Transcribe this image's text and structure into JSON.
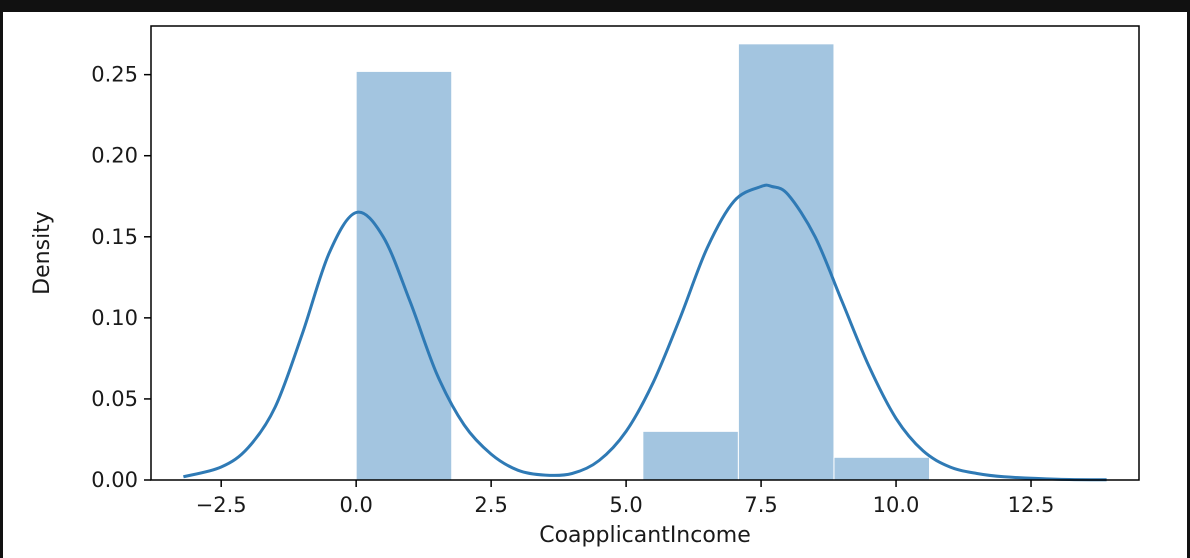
{
  "chart_data": {
    "type": "bar",
    "subtype": "histogram-with-kde",
    "xlabel": "CoapplicantIncome",
    "ylabel": "Density",
    "xlim": [
      -3.8,
      14.5
    ],
    "ylim": [
      0,
      0.28
    ],
    "x_ticks": [
      -2.5,
      0.0,
      2.5,
      5.0,
      7.5,
      10.0,
      12.5
    ],
    "x_tick_labels": [
      "−2.5",
      "0.0",
      "2.5",
      "5.0",
      "7.5",
      "10.0",
      "12.5"
    ],
    "y_ticks": [
      0.0,
      0.05,
      0.1,
      0.15,
      0.2,
      0.25
    ],
    "y_tick_labels": [
      "0.00",
      "0.05",
      "0.10",
      "0.15",
      "0.20",
      "0.25"
    ],
    "grid": false,
    "bar_color": "#a3c5e0",
    "line_color": "#2f7ab5",
    "bins": [
      {
        "x0": 0.0,
        "x1": 1.77,
        "density": 0.252
      },
      {
        "x0": 1.77,
        "x1": 3.54,
        "density": 0.0
      },
      {
        "x0": 3.54,
        "x1": 5.31,
        "density": 0.0
      },
      {
        "x0": 5.31,
        "x1": 7.08,
        "density": 0.03
      },
      {
        "x0": 7.08,
        "x1": 8.85,
        "density": 0.269
      },
      {
        "x0": 8.85,
        "x1": 10.62,
        "density": 0.014
      }
    ],
    "kde": {
      "x": [
        -3.2,
        -2.5,
        -2.0,
        -1.5,
        -1.0,
        -0.5,
        0.0,
        0.5,
        1.0,
        1.5,
        2.0,
        2.5,
        3.0,
        3.5,
        4.0,
        4.5,
        5.0,
        5.5,
        6.0,
        6.5,
        7.0,
        7.5,
        7.7,
        8.0,
        8.5,
        9.0,
        9.5,
        10.0,
        10.5,
        11.0,
        11.5,
        12.0,
        13.0,
        13.9
      ],
      "y": [
        0.002,
        0.008,
        0.02,
        0.045,
        0.09,
        0.14,
        0.165,
        0.15,
        0.11,
        0.065,
        0.034,
        0.016,
        0.006,
        0.003,
        0.004,
        0.012,
        0.03,
        0.06,
        0.1,
        0.143,
        0.172,
        0.181,
        0.181,
        0.176,
        0.15,
        0.11,
        0.07,
        0.038,
        0.018,
        0.008,
        0.004,
        0.002,
        0.0005,
        0.0001
      ]
    }
  }
}
